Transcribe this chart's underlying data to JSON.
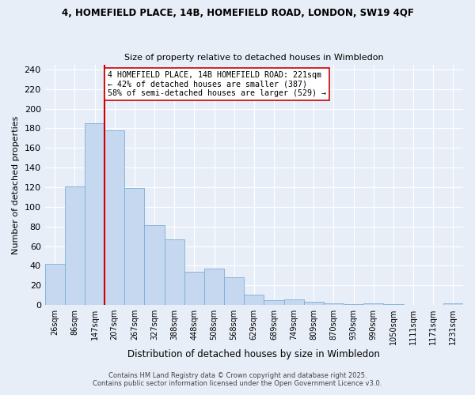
{
  "title1": "4, HOMEFIELD PLACE, 14B, HOMEFIELD ROAD, LONDON, SW19 4QF",
  "title2": "Size of property relative to detached houses in Wimbledon",
  "xlabel": "Distribution of detached houses by size in Wimbledon",
  "ylabel": "Number of detached properties",
  "categories": [
    "26sqm",
    "86sqm",
    "147sqm",
    "207sqm",
    "267sqm",
    "327sqm",
    "388sqm",
    "448sqm",
    "508sqm",
    "568sqm",
    "629sqm",
    "689sqm",
    "749sqm",
    "809sqm",
    "870sqm",
    "930sqm",
    "990sqm",
    "1050sqm",
    "1111sqm",
    "1171sqm",
    "1231sqm"
  ],
  "values": [
    42,
    121,
    185,
    178,
    119,
    81,
    67,
    34,
    37,
    28,
    11,
    5,
    6,
    3,
    2,
    1,
    2,
    1,
    0,
    0,
    2
  ],
  "bar_color": "#c5d8f0",
  "bar_edge_color": "#7aafd4",
  "vline_color": "#cc0000",
  "annotation_text": "4 HOMEFIELD PLACE, 14B HOMEFIELD ROAD: 221sqm\n← 42% of detached houses are smaller (387)\n58% of semi-detached houses are larger (529) →",
  "annotation_box_color": "#ffffff",
  "annotation_box_edge": "#cc0000",
  "footer1": "Contains HM Land Registry data © Crown copyright and database right 2025.",
  "footer2": "Contains public sector information licensed under the Open Government Licence v3.0.",
  "ylim": [
    0,
    245
  ],
  "yticks": [
    0,
    20,
    40,
    60,
    80,
    100,
    120,
    140,
    160,
    180,
    200,
    220,
    240
  ],
  "bg_color": "#e8eef8",
  "plot_bg_color": "#e8eef8",
  "title1_fontsize": 8.5,
  "title2_fontsize": 8.0
}
